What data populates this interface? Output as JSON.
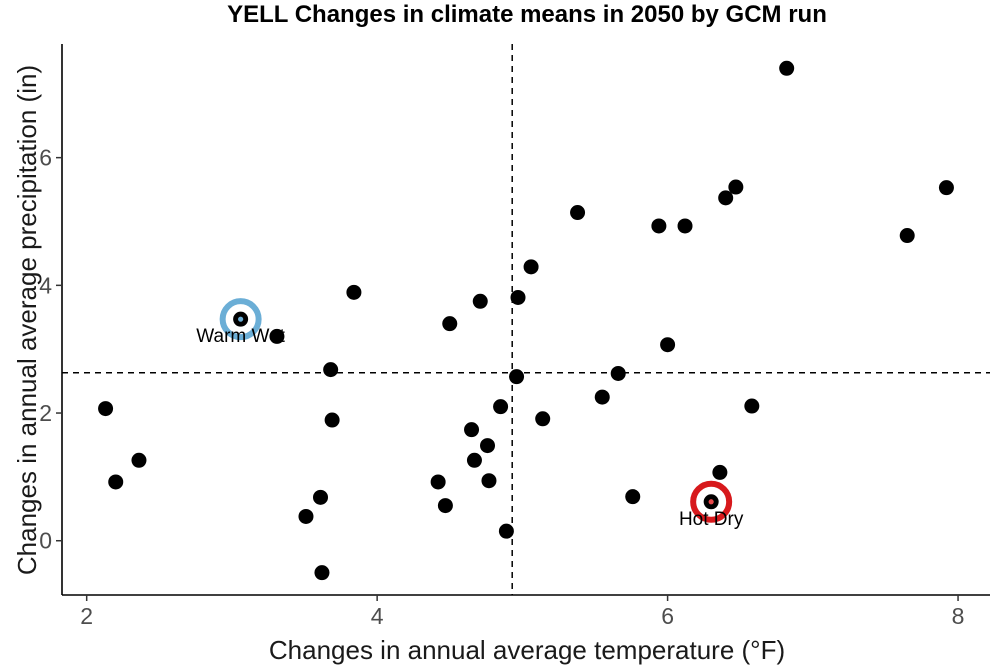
{
  "chart_data": {
    "type": "scatter",
    "title": "YELL Changes in climate means in 2050 by GCM run",
    "xlabel": "Changes in annual average temperature (°F)",
    "ylabel": "Changes in annual average precipitation (in)",
    "xlim": [
      1.83,
      8.22
    ],
    "ylim": [
      -0.85,
      7.78
    ],
    "x_ticks": [
      2,
      4,
      6,
      8
    ],
    "y_ticks": [
      0,
      2,
      4,
      6
    ],
    "x_tick_labels": [
      "2",
      "4",
      "6",
      "8"
    ],
    "y_tick_labels": [
      "0",
      "2",
      "4",
      "6"
    ],
    "grid": false,
    "point_color": "#000000",
    "reference_lines": {
      "x": 4.93,
      "y": 2.63,
      "style": "dashed"
    },
    "points": [
      {
        "x": 2.13,
        "y": 2.07
      },
      {
        "x": 2.2,
        "y": 0.92
      },
      {
        "x": 2.36,
        "y": 1.26
      },
      {
        "x": 3.06,
        "y": 3.47
      },
      {
        "x": 3.31,
        "y": 3.2
      },
      {
        "x": 3.51,
        "y": 0.38
      },
      {
        "x": 3.61,
        "y": 0.68
      },
      {
        "x": 3.62,
        "y": -0.5
      },
      {
        "x": 3.68,
        "y": 2.68
      },
      {
        "x": 3.69,
        "y": 1.89
      },
      {
        "x": 3.84,
        "y": 3.89
      },
      {
        "x": 4.42,
        "y": 0.92
      },
      {
        "x": 4.47,
        "y": 0.55
      },
      {
        "x": 4.5,
        "y": 3.4
      },
      {
        "x": 4.65,
        "y": 1.74
      },
      {
        "x": 4.67,
        "y": 1.26
      },
      {
        "x": 4.71,
        "y": 3.75
      },
      {
        "x": 4.76,
        "y": 1.49
      },
      {
        "x": 4.77,
        "y": 0.94
      },
      {
        "x": 4.85,
        "y": 2.1
      },
      {
        "x": 4.89,
        "y": 0.15
      },
      {
        "x": 4.96,
        "y": 2.57
      },
      {
        "x": 4.97,
        "y": 3.81
      },
      {
        "x": 5.06,
        "y": 4.29
      },
      {
        "x": 5.14,
        "y": 1.91
      },
      {
        "x": 5.38,
        "y": 5.14
      },
      {
        "x": 5.55,
        "y": 2.25
      },
      {
        "x": 5.66,
        "y": 2.62
      },
      {
        "x": 5.76,
        "y": 0.69
      },
      {
        "x": 5.94,
        "y": 4.93
      },
      {
        "x": 6.0,
        "y": 3.07
      },
      {
        "x": 6.12,
        "y": 4.93
      },
      {
        "x": 6.3,
        "y": 0.61
      },
      {
        "x": 6.36,
        "y": 1.07
      },
      {
        "x": 6.4,
        "y": 5.37
      },
      {
        "x": 6.47,
        "y": 5.54
      },
      {
        "x": 6.58,
        "y": 2.11
      },
      {
        "x": 6.82,
        "y": 7.4
      },
      {
        "x": 7.65,
        "y": 4.78
      },
      {
        "x": 7.92,
        "y": 5.53
      }
    ],
    "highlights": [
      {
        "label": "Warm Wet",
        "x": 3.06,
        "y": 3.47,
        "color": "#6baed6",
        "inner_color": "#6baed6"
      },
      {
        "label": "Hot Dry",
        "x": 6.3,
        "y": 0.61,
        "color": "#d7191c",
        "inner_color": "#e8484a"
      }
    ]
  }
}
